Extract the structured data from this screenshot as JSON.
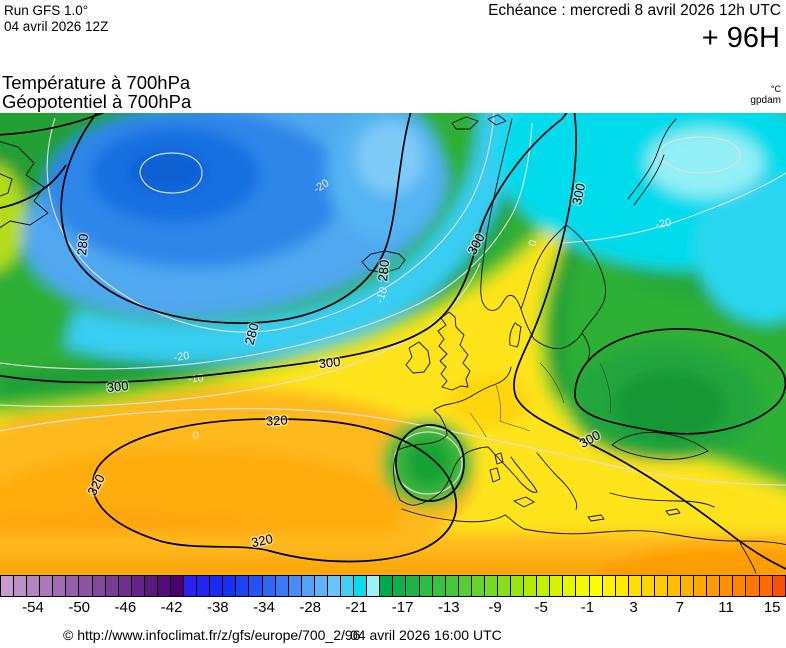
{
  "header": {
    "run_line1": "Run GFS 1.0°",
    "run_line2": "04 avril 2026 12Z",
    "echeance": "Echéance : mercredi 8 avril 2026 12h UTC",
    "forecast_hour": "+ 96H",
    "param_line1": "Température à 700hPa",
    "param_line2": "Géopotentiel à 700hPa",
    "unit_temp": "°C",
    "unit_geo": "gpdam"
  },
  "footer": {
    "copyright": "© http://www.infoclimat.fr/z/gfs/europe/700_2/96",
    "valid_time": "04 avril 2026 16:00 UTC"
  },
  "colorbar": {
    "labels": [
      "-54",
      "-50",
      "-46",
      "-42",
      "-38",
      "-34",
      "-28",
      "-21",
      "-17",
      "-13",
      "-9",
      "-5",
      "-1",
      "3",
      "7",
      "11",
      "15"
    ],
    "cells": [
      "#C89CD0",
      "#BE90C8",
      "#B484C1",
      "#AB78BA",
      "#A16CB2",
      "#9760AB",
      "#8D54A3",
      "#83489C",
      "#793C94",
      "#6F308D",
      "#652585",
      "#5B197E",
      "#510D76",
      "#47026F",
      "#2B1FF2",
      "#2024F1",
      "#1A2AF0",
      "#1631EF",
      "#1C42F1",
      "#2453F3",
      "#2F66F4",
      "#3B7AF6",
      "#478EF7",
      "#54A1F8",
      "#60B3FA",
      "#6DC4FB",
      "#43CFF2",
      "#0ADCEC",
      "#9DF1F7",
      "#00A94F",
      "#0FAF4D",
      "#1DB54A",
      "#2BBB46",
      "#39C141",
      "#47C73B",
      "#56CD34",
      "#65D32C",
      "#76D923",
      "#88DF19",
      "#9BE50E",
      "#AFEB03",
      "#C3F000",
      "#D5F400",
      "#E6F800",
      "#F4FB00",
      "#FEFD00",
      "#FFF400",
      "#FFEA00",
      "#FFE000",
      "#FFD500",
      "#FFCA00",
      "#FFBF00",
      "#FFB300",
      "#FFA800",
      "#FF9C00",
      "#FF9000",
      "#FF8400",
      "#FF7700",
      "#FF6900",
      "#F95200"
    ]
  },
  "map": {
    "geopotential_contour_labels": {
      "g280": "280",
      "g300": "300",
      "g320": "320"
    },
    "isotherm_labels": {
      "m20": "-20",
      "m10": "-10",
      "z0": "0"
    }
  }
}
